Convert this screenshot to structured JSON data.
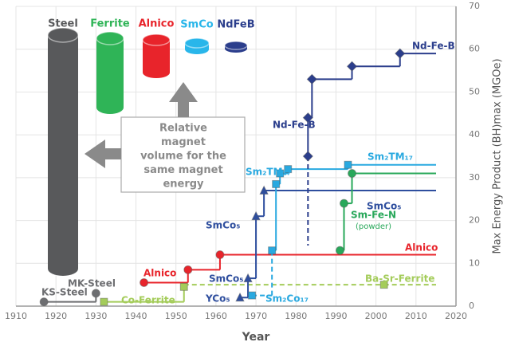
{
  "chart_data": {
    "type": "line",
    "xlabel": "Year",
    "ylabel": "Max Energy Product (BH)max (MGOe)",
    "xlim": [
      1910,
      2020
    ],
    "xticks": [
      1910,
      1920,
      1930,
      1940,
      1950,
      1960,
      1970,
      1980,
      1990,
      2000,
      2010,
      2020
    ],
    "ylim": [
      0,
      70
    ],
    "yticks": [
      0,
      10,
      20,
      30,
      40,
      50,
      60,
      70
    ],
    "grid": true,
    "series": [
      {
        "name": "KS-Steel",
        "color": "#6d6e71",
        "marker": "circle",
        "x": [
          1917,
          1930
        ],
        "values": [
          1,
          3
        ]
      },
      {
        "name": "Co-Ferrite",
        "color": "#a4cc5a",
        "marker": "square",
        "x": [
          1932,
          1952
        ],
        "values": [
          1,
          4.5
        ]
      },
      {
        "name": "Alnico",
        "color": "#e8242b",
        "marker": "circle",
        "x": [
          1942,
          1953,
          1961
        ],
        "values": [
          5.5,
          8.5,
          12
        ]
      },
      {
        "name": "Ba-Sr-Ferrite",
        "color": "#a4cc5a",
        "marker": "square",
        "dashed": true,
        "x": [
          2002
        ],
        "values": [
          5
        ]
      },
      {
        "name": "SmCo₅",
        "color": "#2e4e9e",
        "marker": "triangle",
        "x": [
          1966,
          1968,
          1970,
          1972
        ],
        "values": [
          2,
          6.5,
          21,
          27
        ]
      },
      {
        "name": "Sm₂Co₁₇",
        "color": "#29a9e0",
        "marker": "square",
        "dashed": true,
        "x": [
          1969
        ],
        "values": [
          2.5
        ]
      },
      {
        "name": "Sm₂TM₁₇",
        "color": "#29a9e0",
        "marker": "square",
        "x": [
          1974,
          1975,
          1976,
          1978,
          1993
        ],
        "values": [
          13,
          28.5,
          31,
          32,
          33
        ]
      },
      {
        "name": "Nd-Fe-B",
        "color": "#2b3e8c",
        "marker": "diamond",
        "x": [
          1983,
          1983,
          1984,
          1994,
          2006
        ],
        "values": [
          35,
          44,
          53,
          56,
          59
        ]
      },
      {
        "name": "Sm-Fe-N",
        "color": "#28a85a",
        "marker": "circle",
        "x": [
          1991,
          1992,
          1994
        ],
        "values": [
          13,
          24,
          31
        ]
      }
    ],
    "annotations": [
      {
        "text": "MK-Steel",
        "color": "#6d6e71"
      },
      {
        "text": "Alnico",
        "color": "#e8242b"
      },
      {
        "text": "YCo₅",
        "color": "#2e4e9e"
      },
      {
        "text": "SmCo₅",
        "color": "#2e4e9e"
      },
      {
        "text": "SmCo₅",
        "color": "#2e4e9e"
      },
      {
        "text": "Sm₂TM₁₇",
        "color": "#29a9e0"
      },
      {
        "text": "Nd-Fe-B",
        "color": "#2b3e8c"
      },
      {
        "text": "(powder)",
        "color": "#28a85a"
      }
    ]
  },
  "illustration": {
    "magnets": [
      {
        "label": "Steel",
        "color": "#58595b"
      },
      {
        "label": "Ferrite",
        "color": "#2fb457"
      },
      {
        "label": "Alnico",
        "color": "#e8242b"
      },
      {
        "label": "SmCo",
        "color": "#29b6ea"
      },
      {
        "label": "NdFeB",
        "color": "#2b3e8c"
      }
    ],
    "note": [
      "Relative",
      "magnet",
      "volume for the",
      "same magnet",
      "energy"
    ]
  }
}
